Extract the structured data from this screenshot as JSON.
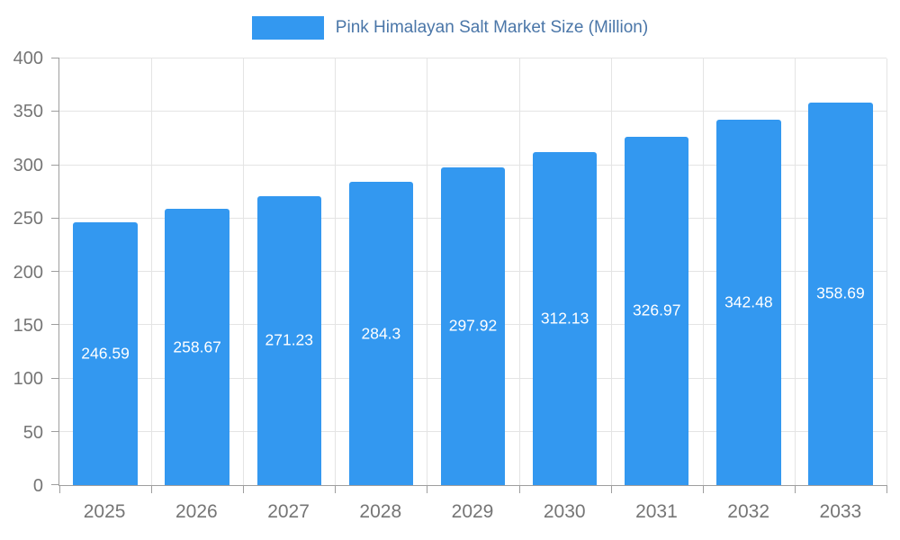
{
  "chart_data": {
    "type": "bar",
    "title": "Pink Himalayan Salt Market Size (Million)",
    "categories": [
      "2025",
      "2026",
      "2027",
      "2028",
      "2029",
      "2030",
      "2031",
      "2032",
      "2033"
    ],
    "values": [
      246.59,
      258.67,
      271.23,
      284.3,
      297.92,
      312.13,
      326.97,
      342.48,
      358.69
    ],
    "ylim": [
      0,
      400
    ],
    "yticks": [
      0,
      50,
      100,
      150,
      200,
      250,
      300,
      350,
      400
    ],
    "bar_color": "#3398f0",
    "bar_label_color": "#ffffff",
    "grid": true,
    "legend_position": "top"
  }
}
